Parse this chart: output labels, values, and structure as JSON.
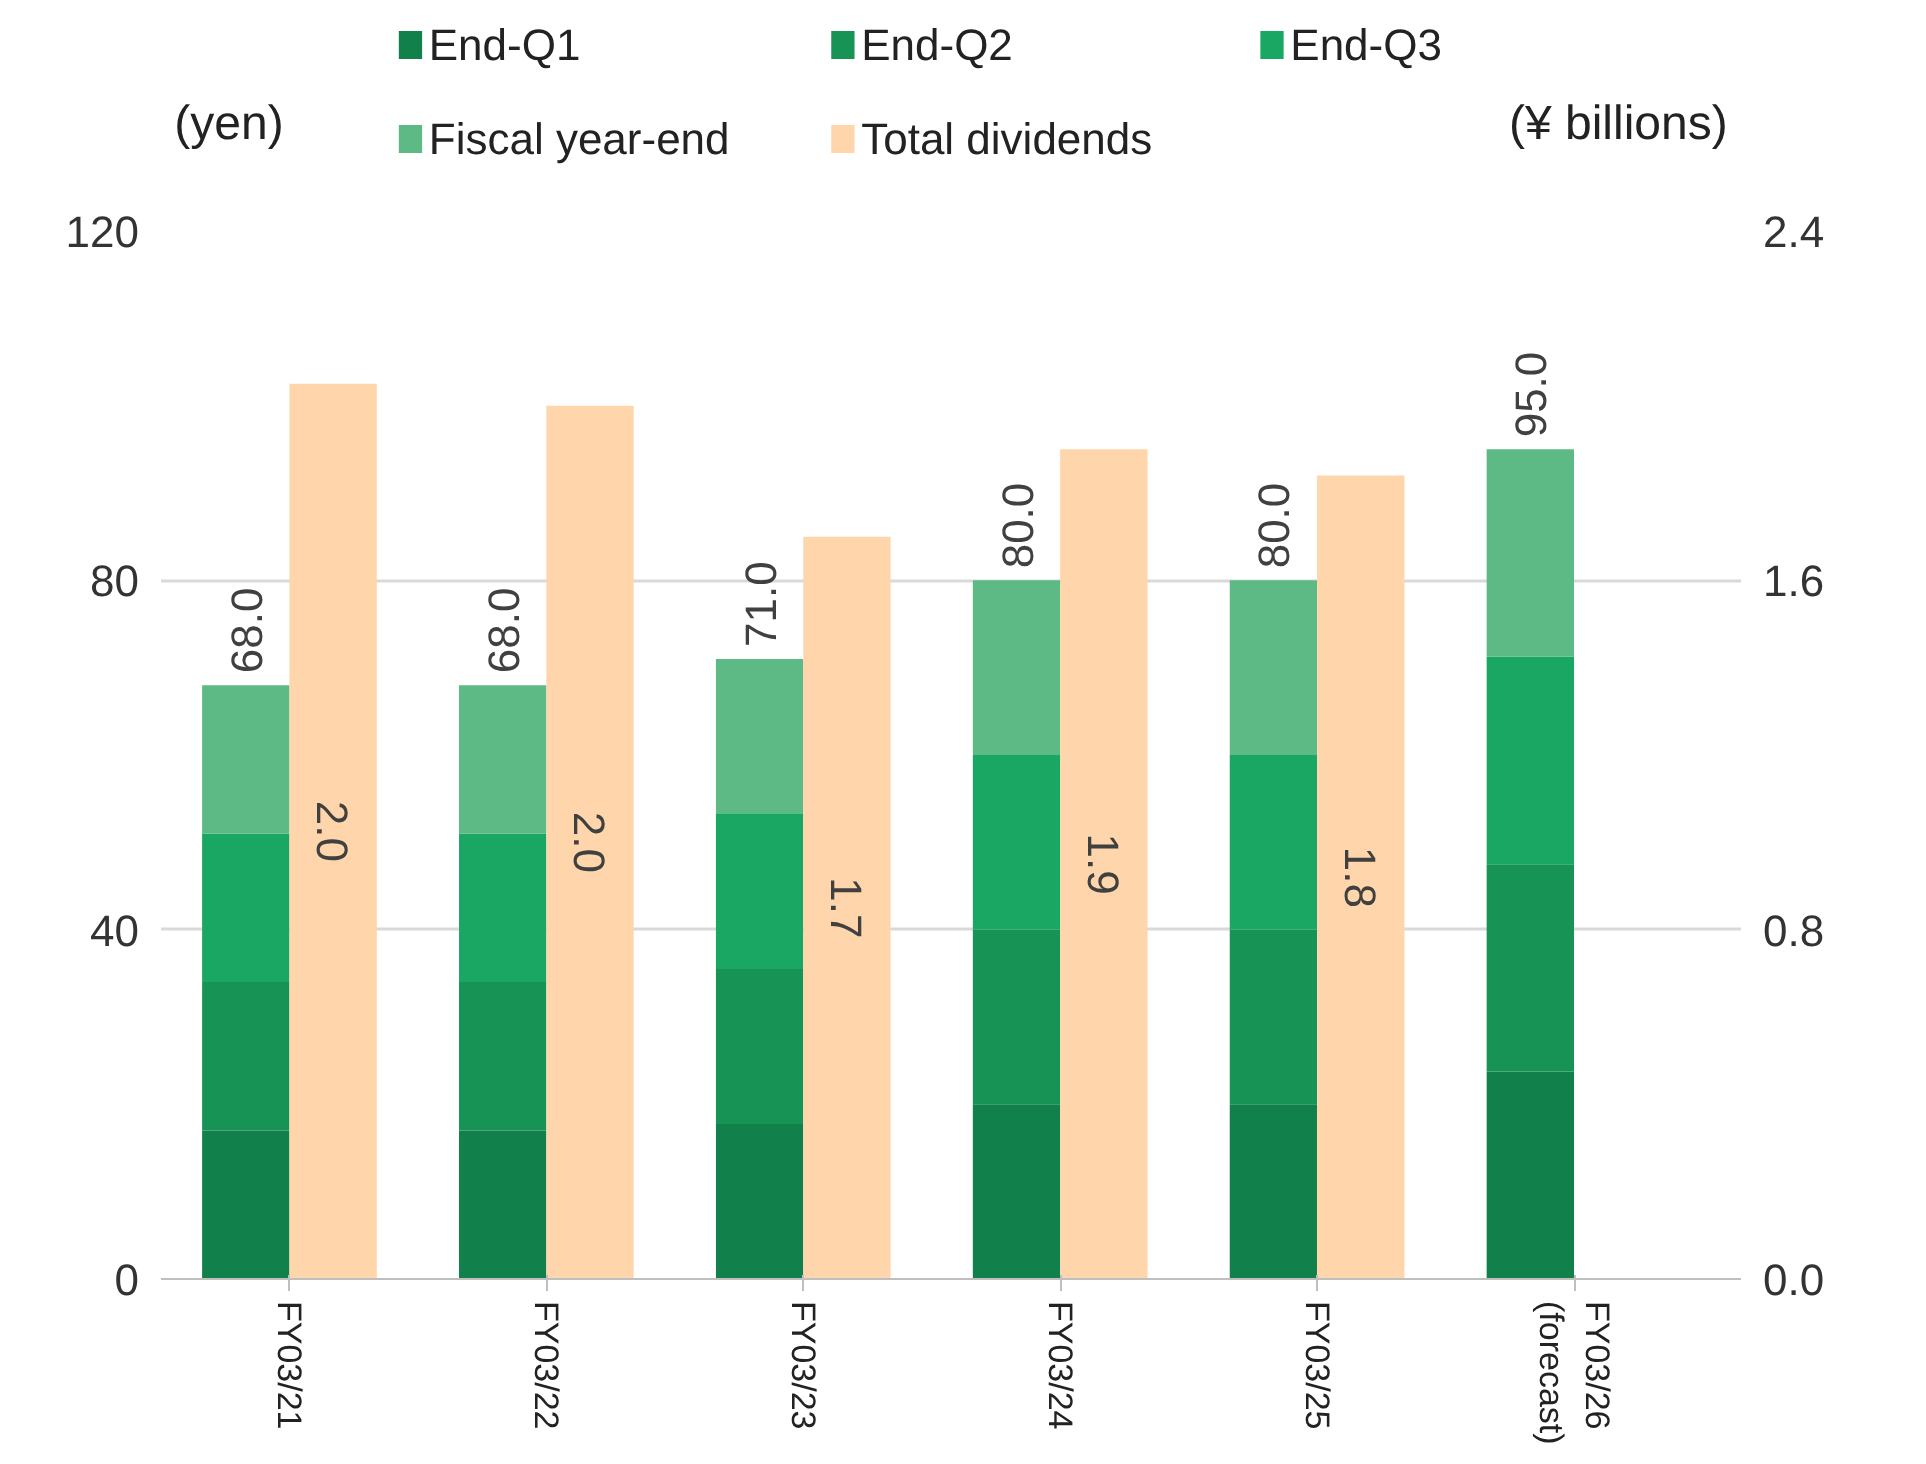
{
  "chart_data": {
    "type": "bar",
    "stacked": true,
    "categories": [
      "FY03/21",
      "FY03/22",
      "FY03/23",
      "FY03/24",
      "FY03/25",
      "FY03/26\n(forecast)"
    ],
    "series": [
      {
        "name": "End-Q1",
        "color": "#11804a",
        "values": [
          17,
          17,
          17.75,
          20,
          20,
          23.75
        ]
      },
      {
        "name": "End-Q2",
        "color": "#179455",
        "values": [
          17,
          17,
          17.75,
          20,
          20,
          23.75
        ]
      },
      {
        "name": "End-Q3",
        "color": "#1aa764",
        "values": [
          17,
          17,
          17.75,
          20,
          20,
          23.75
        ]
      },
      {
        "name": "Fiscal year-end",
        "color": "#5dba84",
        "values": [
          17,
          17,
          17.75,
          20,
          20,
          23.75
        ]
      },
      {
        "name": "Total dividends",
        "color": "#ffd5ab",
        "axis": "y2",
        "values": [
          2.05,
          2.0,
          1.7,
          1.9,
          1.84,
          null
        ],
        "value_labels": [
          "2.0",
          "2.0",
          "1.7",
          "1.9",
          "1.8",
          null
        ]
      }
    ],
    "totals": [
      "68.0",
      "68.0",
      "71.0",
      "80.0",
      "80.0",
      "95.0"
    ],
    "ylabel": "(yen)",
    "y2label": "(¥ billions)",
    "ylim": [
      0,
      120
    ],
    "yticks": [
      0,
      40,
      80,
      120
    ],
    "y2lim": [
      0,
      2.4
    ],
    "y2ticks": [
      {
        "value": 0,
        "label": "0.0"
      },
      {
        "value": 0.8,
        "label": "0.8"
      },
      {
        "value": 1.6,
        "label": "1.6"
      },
      {
        "value": 2.4,
        "label": "2.4"
      }
    ],
    "grid": "y",
    "legend": "top"
  }
}
